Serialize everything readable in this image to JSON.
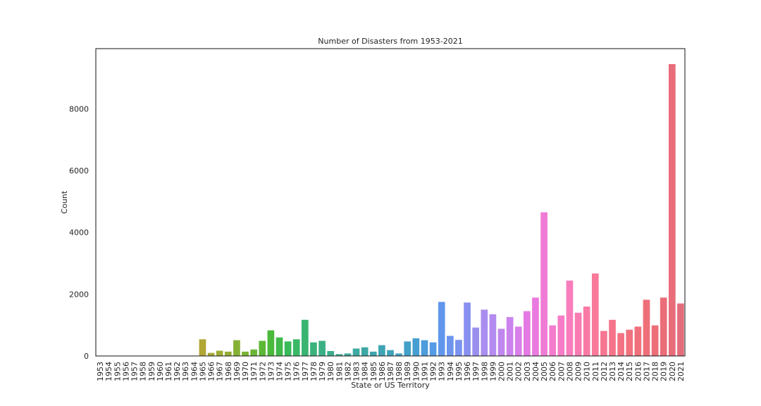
{
  "chart_data": {
    "type": "bar",
    "title": "Number of Disasters from 1953-2021",
    "xlabel": "State or US Territory",
    "ylabel": "Count",
    "ylim": [
      0,
      9950
    ],
    "yticks": [
      0,
      2000,
      4000,
      6000,
      8000
    ],
    "grid": false,
    "legend": "none",
    "categories": [
      "1953",
      "1954",
      "1955",
      "1956",
      "1957",
      "1958",
      "1959",
      "1960",
      "1961",
      "1962",
      "1963",
      "1964",
      "1965",
      "1966",
      "1967",
      "1968",
      "1969",
      "1970",
      "1971",
      "1972",
      "1973",
      "1974",
      "1975",
      "1976",
      "1977",
      "1978",
      "1979",
      "1980",
      "1981",
      "1982",
      "1983",
      "1984",
      "1985",
      "1986",
      "1987",
      "1988",
      "1989",
      "1990",
      "1991",
      "1992",
      "1993",
      "1994",
      "1995",
      "1996",
      "1997",
      "1998",
      "1999",
      "2000",
      "2001",
      "2002",
      "2003",
      "2004",
      "2005",
      "2006",
      "2007",
      "2008",
      "2009",
      "2010",
      "2011",
      "2012",
      "2013",
      "2014",
      "2015",
      "2016",
      "2017",
      "2018",
      "2019",
      "2020",
      "2021"
    ],
    "values": [
      10,
      10,
      10,
      10,
      10,
      10,
      10,
      10,
      10,
      10,
      10,
      10,
      540,
      100,
      170,
      140,
      510,
      140,
      210,
      490,
      830,
      600,
      470,
      540,
      1170,
      440,
      490,
      160,
      60,
      80,
      240,
      280,
      140,
      350,
      190,
      80,
      470,
      570,
      510,
      440,
      1750,
      650,
      520,
      1730,
      920,
      1500,
      1350,
      880,
      1260,
      950,
      1450,
      1890,
      4650,
      990,
      1310,
      2440,
      1400,
      1600,
      2670,
      810,
      1170,
      740,
      850,
      950,
      1820,
      990,
      1890,
      9450,
      1700
    ],
    "colors": [
      "#f7767e",
      "#f57c6b",
      "#f27e5c",
      "#ee834c",
      "#ea8838",
      "#e58e2c",
      "#de9431",
      "#d79833",
      "#cf9c33",
      "#c7a034",
      "#bfa234",
      "#b7a434",
      "#b0a634",
      "#a6a934",
      "#9cac34",
      "#93ae34",
      "#87b135",
      "#7ab334",
      "#6cb535",
      "#5cb736",
      "#4bb939",
      "#3fb949",
      "#38ba59",
      "#39b866",
      "#3ab471",
      "#3bb27c",
      "#3bb085",
      "#3cae8c",
      "#3cac93",
      "#3caa99",
      "#3da9a0",
      "#3da7a6",
      "#3ea5ac",
      "#3fa4b3",
      "#40a2b9",
      "#41a0c0",
      "#43a0c8",
      "#469ed1",
      "#4d9cdc",
      "#559be6",
      "#6097ec",
      "#6d95ee",
      "#7a93ef",
      "#8891f0",
      "#9a8fef",
      "#a98eef",
      "#b48bef",
      "#c087ef",
      "#cc83ee",
      "#d87fe9",
      "#e47ae4",
      "#ea7adf",
      "#f07bd6",
      "#f47cce",
      "#f77cc5",
      "#f97dbd",
      "#f97bb2",
      "#fa7aa5",
      "#f87999",
      "#f77691",
      "#f5748a",
      "#f37284",
      "#f1717f",
      "#f0707b",
      "#ee6f78",
      "#ec6e77",
      "#ea6d78",
      "#e86c79",
      "#e46d7a"
    ]
  }
}
